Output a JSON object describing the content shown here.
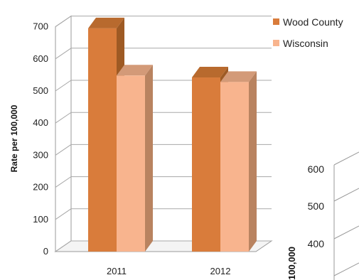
{
  "chart_data": {
    "type": "bar",
    "style": "3d-clustered-column",
    "categories": [
      "2011",
      "2012"
    ],
    "series": [
      {
        "name": "Wood County",
        "values": [
          695,
          542
        ],
        "color": "#D97C3B"
      },
      {
        "name": "Wisconsin",
        "values": [
          548,
          528
        ],
        "color": "#F8B48E"
      }
    ],
    "ylabel": "Rate per 100,000",
    "ylim": [
      0,
      700
    ],
    "yticks": [
      0,
      100,
      200,
      300,
      400,
      500,
      600,
      700
    ],
    "grid": true,
    "legend": "top-right"
  },
  "overlay_chart": {
    "ylabel_partial": "100,000",
    "yticks": [
      400,
      500,
      600
    ]
  }
}
